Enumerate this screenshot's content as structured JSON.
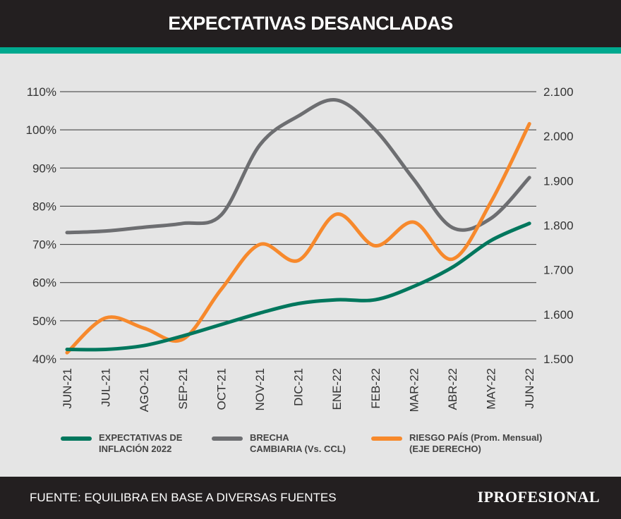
{
  "header": {
    "title": "EXPECTATIVAS DESANCLADAS"
  },
  "chart_data": {
    "type": "line",
    "title": "EXPECTATIVAS DESANCLADAS",
    "categories": [
      "JUN-21",
      "JUL-21",
      "AGO-21",
      "SEP-21",
      "OCT-21",
      "NOV-21",
      "DIC-21",
      "ENE-22",
      "FEB-22",
      "MAR-22",
      "ABR-22",
      "MAY-22",
      "JUN-22"
    ],
    "left_axis": {
      "range": [
        40,
        110
      ],
      "ticks": [
        "40%",
        "50%",
        "60%",
        "70%",
        "80%",
        "90%",
        "100%",
        "110%"
      ]
    },
    "right_axis": {
      "range": [
        1500,
        2100
      ],
      "ticks": [
        {
          "value": 1500,
          "label": "1.500"
        },
        {
          "value": 1600,
          "label": "1.600"
        },
        {
          "value": 1700,
          "label": "1.700"
        },
        {
          "value": 1800,
          "label": "1.800"
        },
        {
          "value": 1900,
          "label": "1.900"
        },
        {
          "value": 2000,
          "label": "2.000"
        },
        {
          "value": 2100,
          "label": "2.100"
        }
      ]
    },
    "grid": true,
    "legend_position": "bottom",
    "series": [
      {
        "name": "EXPECTATIVAS DE INFLACIÓN 2022",
        "axis": "left",
        "color": "#00775d",
        "values": [
          42.5,
          42.5,
          43.5,
          46,
          49,
          52,
          54.5,
          55.5,
          55.5,
          59,
          64,
          71,
          75.5
        ]
      },
      {
        "name": "BRECHA CAMBIARIA (Vs. CCL)",
        "axis": "left",
        "color": "#6d6e71",
        "values": [
          73.1,
          73.5,
          74.5,
          75.5,
          77.7,
          96,
          103.6,
          107.8,
          100,
          87,
          74.4,
          76.8,
          87.5
        ]
      },
      {
        "name": "RIESGO PAÍS (Prom. Mensual) (EJE DERECHO)",
        "axis": "right",
        "color": "#f7892c",
        "values": [
          1514,
          1592,
          1569,
          1544,
          1656,
          1757,
          1721,
          1825,
          1754,
          1807,
          1724,
          1852,
          2028
        ]
      }
    ]
  },
  "legend": [
    {
      "line1": "EXPECTATIVAS DE",
      "line2": "INFLACIÓN 2022",
      "color": "#00775d"
    },
    {
      "line1": "BRECHA",
      "line2": "CAMBIARIA (Vs. CCL)",
      "color": "#6d6e71"
    },
    {
      "line1": "RIESGO PAÍS (Prom. Mensual)",
      "line2": "(EJE DERECHO)",
      "color": "#f7892c"
    }
  ],
  "footer": {
    "source": "FUENTE: EQUILIBRA EN BASE A DIVERSAS FUENTES",
    "logo": "IPROFESIONAL"
  }
}
